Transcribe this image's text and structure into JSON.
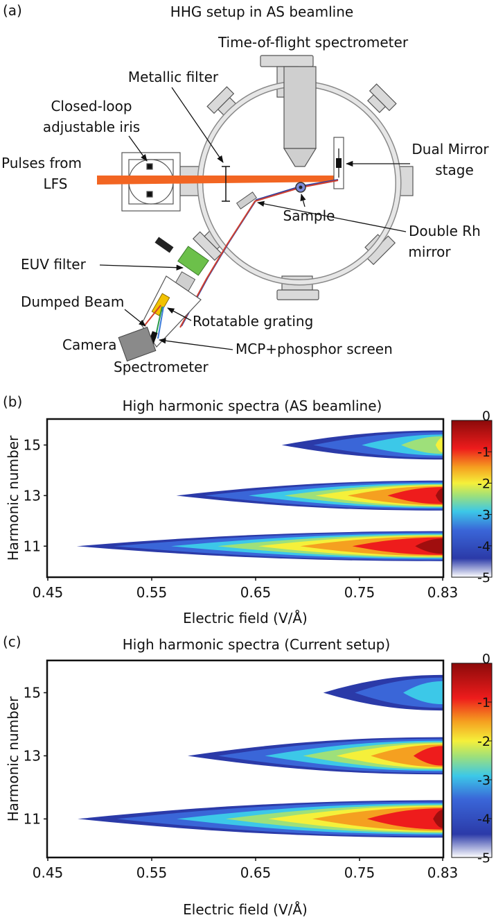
{
  "panel_a": {
    "panel_label": "(a)",
    "title": "HHG setup in AS beamline",
    "labels": {
      "tof": "Time-of-flight spectrometer",
      "metallic_filter": "Metallic filter",
      "closed_loop_1": "Closed-loop",
      "closed_loop_2": "adjustable iris",
      "pulses_1": "Pulses from",
      "pulses_2": "LFS",
      "dual_mirror_1": "Dual Mirror",
      "dual_mirror_2": "stage",
      "sample": "Sample",
      "double_rh_1": "Double Rh",
      "double_rh_2": "mirror",
      "euv_filter": "EUV filter",
      "dumped_beam": "Dumped Beam",
      "rotatable_grating": "Rotatable grating",
      "camera": "Camera",
      "mcp": "MCP+phosphor screen",
      "spectrometer": "Spectrometer"
    },
    "colors": {
      "laser": "#f26522",
      "euv_filter": "#6cc04a",
      "grating": "#f2c200",
      "chamber": "#d9d9d9"
    }
  },
  "chart_data": [
    {
      "panel_label": "(b)",
      "type": "heatmap",
      "title": "High harmonic spectra (AS beamline)",
      "xlabel": "Electric field (V/Å)",
      "ylabel": "Harmonic number",
      "xticks": [
        "0.45",
        "0.55",
        "0.65",
        "0.75",
        "0.83"
      ],
      "xtick_values": [
        0.45,
        0.55,
        0.65,
        0.75,
        0.83
      ],
      "yticks": [
        "11",
        "13",
        "15"
      ],
      "ytick_values": [
        11,
        13,
        15
      ],
      "xlim": [
        0.45,
        0.83
      ],
      "ylim": [
        9.8,
        16.0
      ],
      "colorbar": {
        "ticks": [
          "0",
          "-1",
          "-2",
          "-3",
          "-4",
          "-5"
        ],
        "tick_values": [
          0,
          -1,
          -2,
          -3,
          -4,
          -5
        ],
        "range": [
          -5,
          0
        ]
      },
      "bands": [
        {
          "harmonic": 11,
          "onset_field": 0.46,
          "max_intensity_log": 0.0
        },
        {
          "harmonic": 13,
          "onset_field": 0.56,
          "max_intensity_log": -0.2
        },
        {
          "harmonic": 15,
          "onset_field": 0.66,
          "max_intensity_log": -2.0
        }
      ]
    },
    {
      "panel_label": "(c)",
      "type": "heatmap",
      "title": "High harmonic spectra (Current setup)",
      "xlabel": "Electric field (V/Å)",
      "ylabel": "Harmonic number",
      "xticks": [
        "0.45",
        "0.55",
        "0.65",
        "0.75",
        "0.83"
      ],
      "xtick_values": [
        0.45,
        0.55,
        0.65,
        0.75,
        0.83
      ],
      "yticks": [
        "11",
        "13",
        "15"
      ],
      "ytick_values": [
        11,
        13,
        15
      ],
      "xlim": [
        0.45,
        0.83
      ],
      "ylim": [
        9.8,
        16.0
      ],
      "colorbar": {
        "ticks": [
          "0",
          "-1",
          "-2",
          "-3",
          "-4",
          "-5"
        ],
        "tick_values": [
          0,
          -1,
          -2,
          -3,
          -4,
          -5
        ],
        "range": [
          -5,
          0
        ]
      },
      "bands": [
        {
          "harmonic": 11,
          "onset_field": 0.46,
          "max_intensity_log": -0.2
        },
        {
          "harmonic": 13,
          "onset_field": 0.57,
          "max_intensity_log": -0.6
        },
        {
          "harmonic": 15,
          "onset_field": 0.7,
          "max_intensity_log": -2.6
        }
      ]
    }
  ]
}
